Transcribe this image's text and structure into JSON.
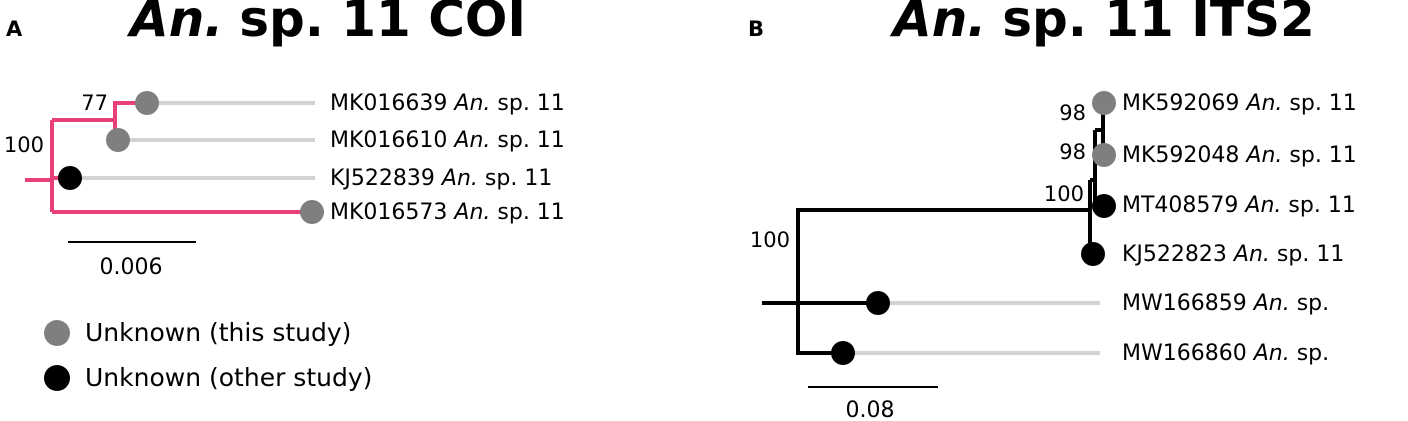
{
  "panels": [
    {
      "label": "A",
      "title": {
        "genus": "An.",
        "rest": "sp. 11 COI"
      },
      "tips": [
        {
          "accession": "MK016639",
          "genus": "An.",
          "species": "sp. 11"
        },
        {
          "accession": "MK016610",
          "genus": "An.",
          "species": "sp. 11"
        },
        {
          "accession": "KJ522839",
          "genus": "An.",
          "species": "sp. 11"
        },
        {
          "accession": "MK016573",
          "genus": "An.",
          "species": "sp. 11"
        }
      ],
      "support": [
        77,
        100
      ],
      "scale": 0.006
    },
    {
      "label": "B",
      "title": {
        "genus": "An.",
        "rest": "sp. 11 ITS2"
      },
      "tips": [
        {
          "accession": "MK592069",
          "genus": "An.",
          "species": "sp. 11"
        },
        {
          "accession": "MK592048",
          "genus": "An.",
          "species": "sp. 11"
        },
        {
          "accession": "MT408579",
          "genus": "An.",
          "species": "sp. 11"
        },
        {
          "accession": "KJ522823",
          "genus": "An.",
          "species": "sp. 11"
        },
        {
          "accession": "MW166859",
          "genus": "An.",
          "species": "sp."
        },
        {
          "accession": "MW166860",
          "genus": "An.",
          "species": "sp."
        }
      ],
      "support": [
        98,
        98,
        100,
        100
      ],
      "scale": 0.08
    }
  ],
  "legend": [
    {
      "label": "Unknown (this study)"
    },
    {
      "label": "Unknown (other study)"
    }
  ]
}
